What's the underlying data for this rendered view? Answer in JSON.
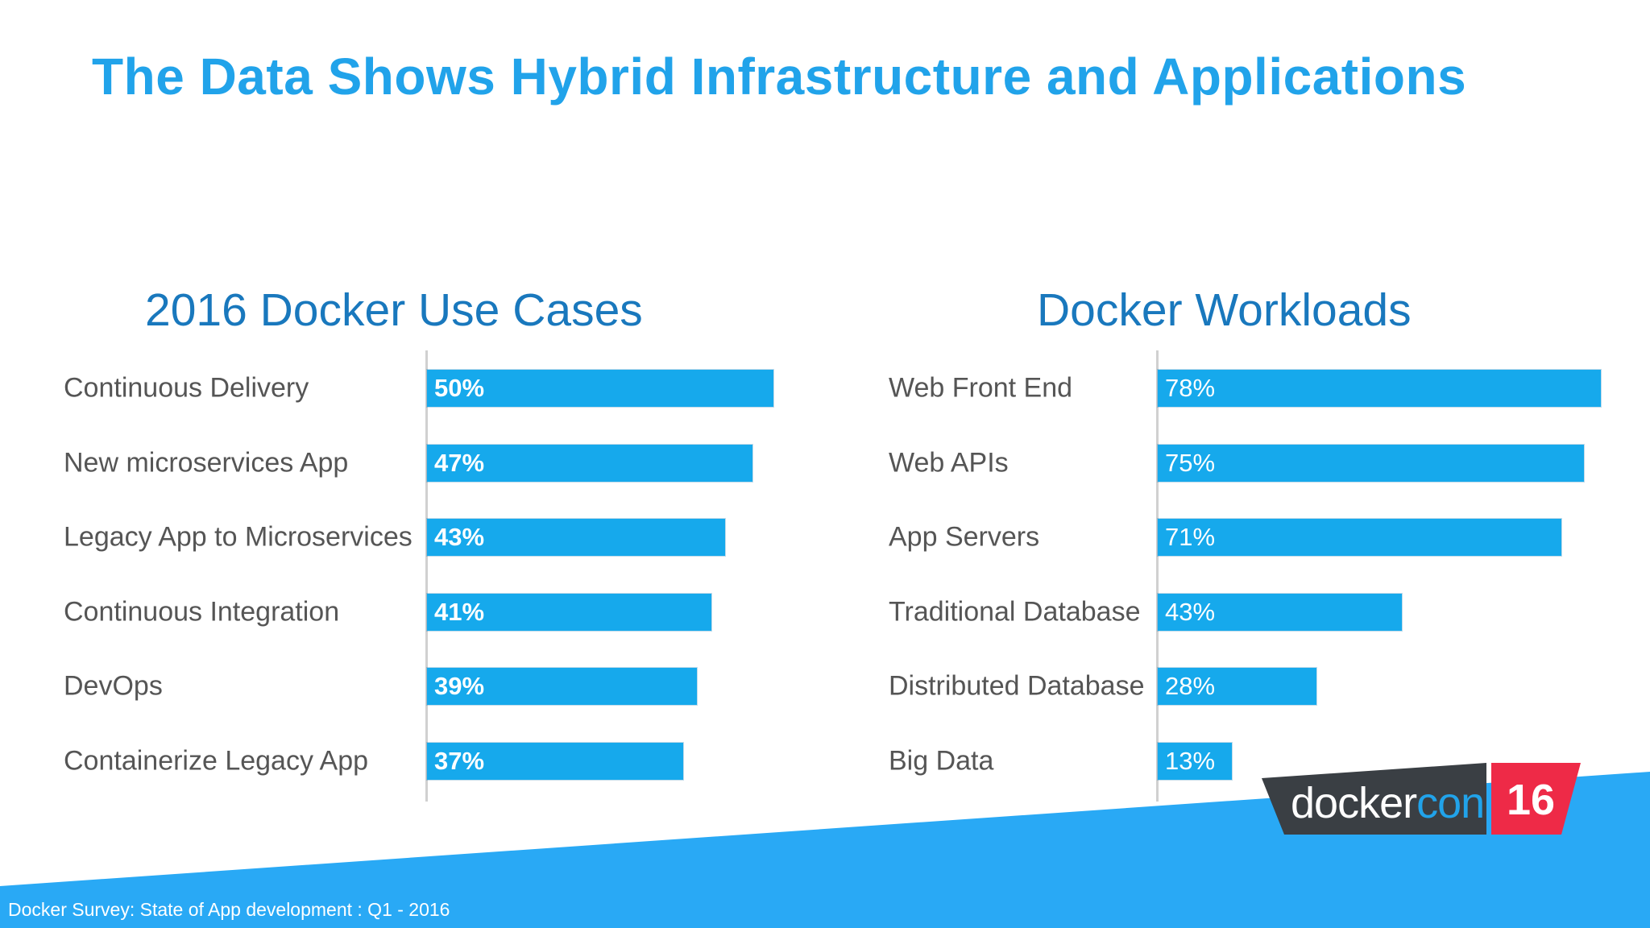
{
  "slide_title": "The Data Shows Hybrid Infrastructure and Applications",
  "footnote": "Docker Survey: State of App development :  Q1 - 2016",
  "logo": {
    "wordmark_main": "docker",
    "wordmark_accent": "con",
    "number": "16"
  },
  "colors": {
    "title": "#21a3ea",
    "chart_heading": "#1978bd",
    "bar": "#16a9ec",
    "band": "#29a9f5",
    "logo_badge": "#3a3f44",
    "logo_accent": "#ee2a47"
  },
  "chart_data": [
    {
      "type": "bar",
      "orientation": "horizontal",
      "title": "2016 Docker Use Cases",
      "categories": [
        "Continuous Delivery",
        "New microservices App",
        "Legacy App to Microservices",
        "Continuous Integration",
        "DevOps",
        "Containerize Legacy App"
      ],
      "values": [
        50,
        47,
        43,
        41,
        39,
        37
      ],
      "value_labels": [
        "50%",
        "47%",
        "43%",
        "41%",
        "39%",
        "37%"
      ],
      "xlim": [
        0,
        100
      ],
      "value_label_style": "bold",
      "grid": false
    },
    {
      "type": "bar",
      "orientation": "horizontal",
      "title": "Docker Workloads",
      "categories": [
        "Web Front End",
        "Web APIs",
        "App Servers",
        "Traditional Database",
        "Distributed Database",
        "Big Data"
      ],
      "values": [
        78,
        75,
        71,
        43,
        28,
        13
      ],
      "value_labels": [
        "78%",
        "75%",
        "71%",
        "43%",
        "28%",
        "13%"
      ],
      "xlim": [
        0,
        100
      ],
      "value_label_style": "normal",
      "grid": false
    }
  ]
}
